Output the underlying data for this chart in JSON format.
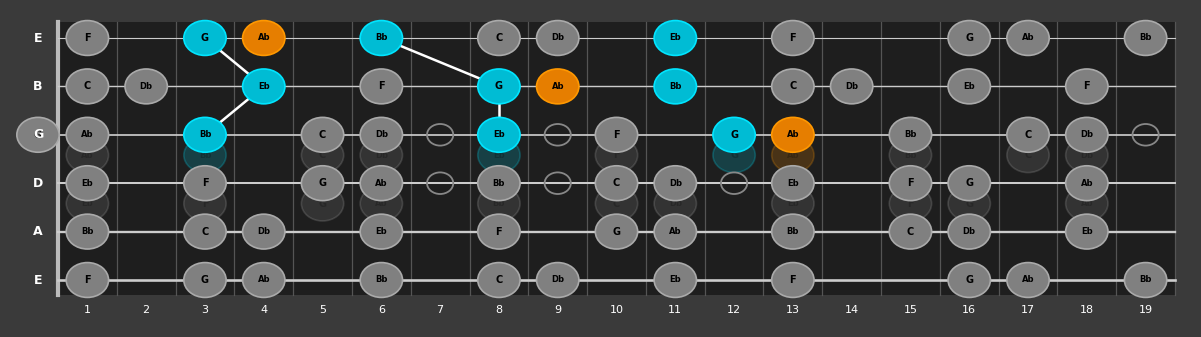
{
  "bg_color": "#3a3a3a",
  "fretboard_color": "#1e1e1e",
  "string_color": "#cccccc",
  "string_labels": [
    "E",
    "B",
    "G",
    "D",
    "A",
    "E"
  ],
  "notes": [
    {
      "string": 0,
      "fret": 1,
      "label": "F",
      "color": "gray"
    },
    {
      "string": 0,
      "fret": 3,
      "label": "G",
      "color": "cyan"
    },
    {
      "string": 0,
      "fret": 4,
      "label": "Ab",
      "color": "orange"
    },
    {
      "string": 0,
      "fret": 6,
      "label": "Bb",
      "color": "cyan"
    },
    {
      "string": 0,
      "fret": 8,
      "label": "C",
      "color": "gray"
    },
    {
      "string": 0,
      "fret": 9,
      "label": "Db",
      "color": "gray"
    },
    {
      "string": 0,
      "fret": 11,
      "label": "Eb",
      "color": "cyan"
    },
    {
      "string": 0,
      "fret": 13,
      "label": "F",
      "color": "gray"
    },
    {
      "string": 0,
      "fret": 16,
      "label": "G",
      "color": "gray"
    },
    {
      "string": 0,
      "fret": 17,
      "label": "Ab",
      "color": "gray"
    },
    {
      "string": 0,
      "fret": 19,
      "label": "Bb",
      "color": "gray"
    },
    {
      "string": 1,
      "fret": 1,
      "label": "C",
      "color": "gray"
    },
    {
      "string": 1,
      "fret": 2,
      "label": "Db",
      "color": "gray"
    },
    {
      "string": 1,
      "fret": 4,
      "label": "Eb",
      "color": "cyan"
    },
    {
      "string": 1,
      "fret": 6,
      "label": "F",
      "color": "gray"
    },
    {
      "string": 1,
      "fret": 8,
      "label": "G",
      "color": "cyan"
    },
    {
      "string": 1,
      "fret": 9,
      "label": "Ab",
      "color": "orange"
    },
    {
      "string": 1,
      "fret": 11,
      "label": "Bb",
      "color": "cyan"
    },
    {
      "string": 1,
      "fret": 13,
      "label": "C",
      "color": "gray"
    },
    {
      "string": 1,
      "fret": 14,
      "label": "Db",
      "color": "gray"
    },
    {
      "string": 1,
      "fret": 16,
      "label": "Eb",
      "color": "gray"
    },
    {
      "string": 1,
      "fret": 18,
      "label": "F",
      "color": "gray"
    },
    {
      "string": 2,
      "fret": 1,
      "label": "Ab",
      "color": "gray"
    },
    {
      "string": 2,
      "fret": 3,
      "label": "Bb",
      "color": "cyan"
    },
    {
      "string": 2,
      "fret": 5,
      "label": "C",
      "color": "gray"
    },
    {
      "string": 2,
      "fret": 6,
      "label": "Db",
      "color": "gray"
    },
    {
      "string": 2,
      "fret": 8,
      "label": "Eb",
      "color": "cyan"
    },
    {
      "string": 2,
      "fret": 10,
      "label": "F",
      "color": "gray"
    },
    {
      "string": 2,
      "fret": 12,
      "label": "G",
      "color": "cyan"
    },
    {
      "string": 2,
      "fret": 13,
      "label": "Ab",
      "color": "orange"
    },
    {
      "string": 2,
      "fret": 15,
      "label": "Bb",
      "color": "gray"
    },
    {
      "string": 2,
      "fret": 17,
      "label": "C",
      "color": "gray"
    },
    {
      "string": 2,
      "fret": 18,
      "label": "Db",
      "color": "gray"
    },
    {
      "string": 3,
      "fret": 1,
      "label": "Eb",
      "color": "gray"
    },
    {
      "string": 3,
      "fret": 3,
      "label": "F",
      "color": "gray"
    },
    {
      "string": 3,
      "fret": 5,
      "label": "G",
      "color": "gray"
    },
    {
      "string": 3,
      "fret": 6,
      "label": "Ab",
      "color": "gray"
    },
    {
      "string": 3,
      "fret": 8,
      "label": "Bb",
      "color": "gray"
    },
    {
      "string": 3,
      "fret": 10,
      "label": "C",
      "color": "gray"
    },
    {
      "string": 3,
      "fret": 11,
      "label": "Db",
      "color": "gray"
    },
    {
      "string": 3,
      "fret": 13,
      "label": "Eb",
      "color": "gray"
    },
    {
      "string": 3,
      "fret": 15,
      "label": "F",
      "color": "gray"
    },
    {
      "string": 3,
      "fret": 16,
      "label": "G",
      "color": "gray"
    },
    {
      "string": 3,
      "fret": 18,
      "label": "Ab",
      "color": "gray"
    },
    {
      "string": 4,
      "fret": 1,
      "label": "Bb",
      "color": "gray"
    },
    {
      "string": 4,
      "fret": 3,
      "label": "C",
      "color": "gray"
    },
    {
      "string": 4,
      "fret": 4,
      "label": "Db",
      "color": "gray"
    },
    {
      "string": 4,
      "fret": 6,
      "label": "Eb",
      "color": "gray"
    },
    {
      "string": 4,
      "fret": 8,
      "label": "F",
      "color": "gray"
    },
    {
      "string": 4,
      "fret": 10,
      "label": "G",
      "color": "gray"
    },
    {
      "string": 4,
      "fret": 11,
      "label": "Ab",
      "color": "gray"
    },
    {
      "string": 4,
      "fret": 13,
      "label": "Bb",
      "color": "gray"
    },
    {
      "string": 4,
      "fret": 15,
      "label": "C",
      "color": "gray"
    },
    {
      "string": 4,
      "fret": 16,
      "label": "Db",
      "color": "gray"
    },
    {
      "string": 4,
      "fret": 18,
      "label": "Eb",
      "color": "gray"
    },
    {
      "string": 5,
      "fret": 1,
      "label": "F",
      "color": "gray"
    },
    {
      "string": 5,
      "fret": 3,
      "label": "G",
      "color": "gray"
    },
    {
      "string": 5,
      "fret": 4,
      "label": "Ab",
      "color": "gray"
    },
    {
      "string": 5,
      "fret": 6,
      "label": "Bb",
      "color": "gray"
    },
    {
      "string": 5,
      "fret": 8,
      "label": "C",
      "color": "gray"
    },
    {
      "string": 5,
      "fret": 9,
      "label": "Db",
      "color": "gray"
    },
    {
      "string": 5,
      "fret": 11,
      "label": "Eb",
      "color": "gray"
    },
    {
      "string": 5,
      "fret": 13,
      "label": "F",
      "color": "gray"
    },
    {
      "string": 5,
      "fret": 16,
      "label": "G",
      "color": "gray"
    },
    {
      "string": 5,
      "fret": 17,
      "label": "Ab",
      "color": "gray"
    },
    {
      "string": 5,
      "fret": 19,
      "label": "Bb",
      "color": "gray"
    }
  ],
  "open_string_note": {
    "string": 2,
    "label": "G",
    "color": "gray"
  },
  "lines": [
    {
      "s1": 0,
      "f1": 3,
      "s2": 1,
      "f2": 4
    },
    {
      "s1": 1,
      "f1": 4,
      "s2": 2,
      "f2": 3
    },
    {
      "s1": 0,
      "f1": 6,
      "s2": 1,
      "f2": 8
    },
    {
      "s1": 1,
      "f1": 8,
      "s2": 2,
      "f2": 8
    }
  ],
  "open_rings": [
    {
      "string": 2,
      "fret": 7
    },
    {
      "string": 3,
      "fret": 7
    },
    {
      "string": 2,
      "fret": 9
    },
    {
      "string": 3,
      "fret": 9
    },
    {
      "string": 3,
      "fret": 12
    },
    {
      "string": 3,
      "fret": 15
    },
    {
      "string": 2,
      "fret": 19
    }
  ],
  "colors": {
    "gray": {
      "face": "#808080",
      "edge": "#aaaaaa",
      "text": "#000000"
    },
    "cyan": {
      "face": "#00bcd4",
      "edge": "#00e5ff",
      "text": "#000000"
    },
    "orange": {
      "face": "#e67e00",
      "edge": "#ff9800",
      "text": "#000000"
    }
  }
}
